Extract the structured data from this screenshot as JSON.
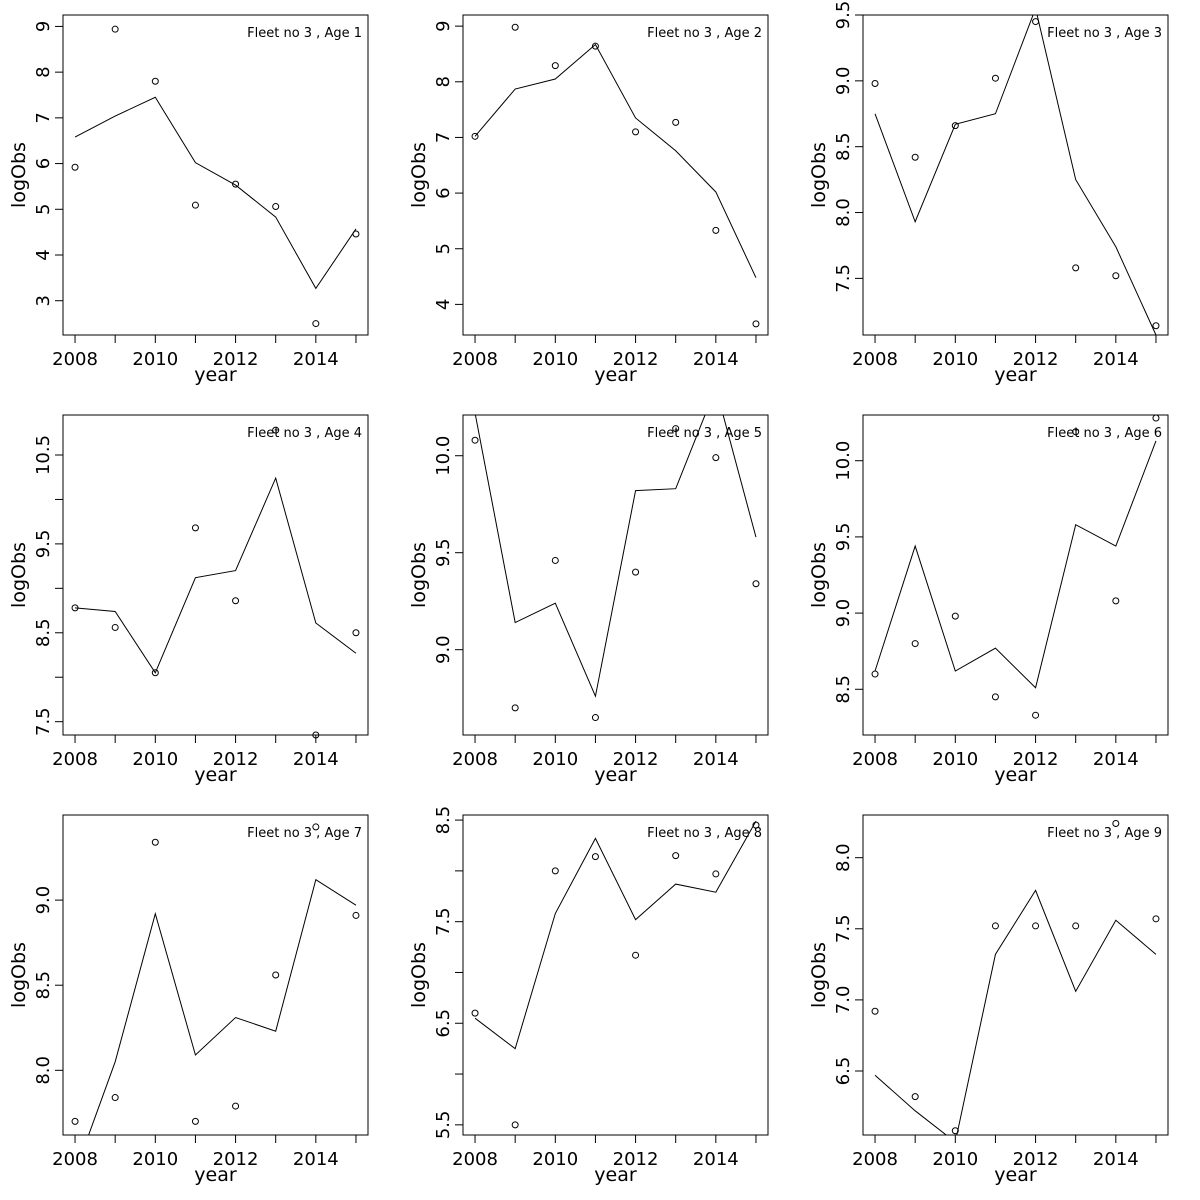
{
  "chart_data": [
    {
      "type": "line",
      "title": "Fleet no 3 , Age 1",
      "xlabel": "year",
      "ylabel": "logObs",
      "x": [
        2008,
        2009,
        2010,
        2011,
        2012,
        2013,
        2014,
        2015
      ],
      "xlim": [
        2007.7,
        2015.3
      ],
      "ylim": [
        2.25,
        9.25
      ],
      "xticks": [
        2008,
        2010,
        2012,
        2014
      ],
      "xtick_labels": [
        "2008",
        "2010",
        "2012",
        "2014"
      ],
      "yticks": [
        3,
        4,
        5,
        6,
        7,
        8,
        9
      ],
      "ytick_labels": [
        "3",
        "4",
        "5",
        "6",
        "7",
        "8",
        "9"
      ],
      "series": [
        {
          "style": "points",
          "values": [
            5.92,
            8.94,
            7.8,
            5.09,
            5.55,
            5.06,
            2.5,
            4.46
          ]
        },
        {
          "style": "line",
          "values": [
            6.58,
            7.04,
            7.45,
            6.02,
            5.53,
            4.83,
            3.27,
            4.57
          ]
        }
      ]
    },
    {
      "type": "line",
      "title": "Fleet no 3 , Age 2",
      "xlabel": "year",
      "ylabel": "logObs",
      "x": [
        2008,
        2009,
        2010,
        2011,
        2012,
        2013,
        2014,
        2015
      ],
      "xlim": [
        2007.7,
        2015.3
      ],
      "ylim": [
        3.45,
        9.2
      ],
      "xticks": [
        2008,
        2010,
        2012,
        2014
      ],
      "xtick_labels": [
        "2008",
        "2010",
        "2012",
        "2014"
      ],
      "yticks": [
        4,
        5,
        6,
        7,
        8,
        9
      ],
      "ytick_labels": [
        "4",
        "5",
        "6",
        "7",
        "8",
        "9"
      ],
      "series": [
        {
          "style": "points",
          "values": [
            7.02,
            8.98,
            8.29,
            8.64,
            7.1,
            7.27,
            5.33,
            3.65
          ]
        },
        {
          "style": "line",
          "values": [
            7.02,
            7.87,
            8.05,
            8.67,
            7.35,
            6.76,
            6.02,
            4.48
          ]
        }
      ]
    },
    {
      "type": "line",
      "title": "Fleet no 3 , Age 3",
      "xlabel": "year",
      "ylabel": "logObs",
      "x": [
        2008,
        2009,
        2010,
        2011,
        2012,
        2013,
        2014,
        2015
      ],
      "xlim": [
        2007.7,
        2015.3
      ],
      "ylim": [
        7.07,
        9.5
      ],
      "xticks": [
        2008,
        2010,
        2012,
        2014
      ],
      "xtick_labels": [
        "2008",
        "2010",
        "2012",
        "2014"
      ],
      "yticks": [
        7.5,
        8.0,
        8.5,
        9.0,
        9.5
      ],
      "ytick_labels": [
        "7.5",
        "8.0",
        "8.5",
        "9.0",
        "9.5"
      ],
      "series": [
        {
          "style": "points",
          "values": [
            8.98,
            8.42,
            8.66,
            9.02,
            9.45,
            7.58,
            7.52,
            7.14
          ]
        },
        {
          "style": "line",
          "values": [
            8.75,
            7.93,
            8.67,
            8.75,
            9.55,
            8.25,
            7.74,
            7.07
          ]
        }
      ]
    },
    {
      "type": "line",
      "title": "Fleet no 3 , Age 4",
      "xlabel": "year",
      "ylabel": "logObs",
      "x": [
        2008,
        2009,
        2010,
        2011,
        2012,
        2013,
        2014,
        2015
      ],
      "xlim": [
        2007.7,
        2015.3
      ],
      "ylim": [
        7.35,
        10.95
      ],
      "xticks": [
        2008,
        2010,
        2012,
        2014
      ],
      "xtick_labels": [
        "2008",
        "2010",
        "2012",
        "2014"
      ],
      "yticks": [
        7.5,
        8.0,
        8.5,
        9.0,
        9.5,
        10.0,
        10.5
      ],
      "ytick_labels": [
        "7.5",
        "",
        "8.5",
        "",
        "9.5",
        "",
        "10.5"
      ],
      "series": [
        {
          "style": "points",
          "values": [
            8.78,
            8.56,
            8.05,
            9.68,
            8.86,
            10.78,
            7.35,
            8.5
          ]
        },
        {
          "style": "line",
          "values": [
            8.78,
            8.74,
            8.05,
            9.12,
            9.2,
            10.24,
            8.61,
            8.27
          ]
        }
      ]
    },
    {
      "type": "line",
      "title": "Fleet no 3 , Age 5",
      "xlabel": "year",
      "ylabel": "logObs",
      "x": [
        2008,
        2009,
        2010,
        2011,
        2012,
        2013,
        2014,
        2015
      ],
      "xlim": [
        2007.7,
        2015.3
      ],
      "ylim": [
        8.56,
        10.21
      ],
      "xticks": [
        2008,
        2010,
        2012,
        2014
      ],
      "xtick_labels": [
        "2008",
        "2010",
        "2012",
        "2014"
      ],
      "yticks": [
        9.0,
        9.5,
        10.0
      ],
      "ytick_labels": [
        "9.0",
        "9.5",
        "10.0"
      ],
      "series": [
        {
          "style": "points",
          "values": [
            10.08,
            8.7,
            9.46,
            8.65,
            9.4,
            10.14,
            9.99,
            9.34
          ]
        },
        {
          "style": "line",
          "values": [
            10.22,
            9.14,
            9.24,
            8.76,
            9.82,
            9.83,
            10.35,
            9.58
          ]
        }
      ]
    },
    {
      "type": "line",
      "title": "Fleet no 3 , Age 6",
      "xlabel": "year",
      "ylabel": "logObs",
      "x": [
        2008,
        2009,
        2010,
        2011,
        2012,
        2013,
        2014,
        2015
      ],
      "xlim": [
        2007.7,
        2015.3
      ],
      "ylim": [
        8.2,
        10.3
      ],
      "xticks": [
        2008,
        2010,
        2012,
        2014
      ],
      "xtick_labels": [
        "2008",
        "2010",
        "2012",
        "2014"
      ],
      "yticks": [
        8.5,
        9.0,
        9.5,
        10.0
      ],
      "ytick_labels": [
        "8.5",
        "9.0",
        "9.5",
        "10.0"
      ],
      "series": [
        {
          "style": "points",
          "values": [
            8.6,
            8.8,
            8.98,
            8.45,
            8.33,
            10.19,
            9.08,
            10.28
          ]
        },
        {
          "style": "line",
          "values": [
            8.62,
            9.44,
            8.62,
            8.77,
            8.51,
            9.58,
            9.44,
            10.13
          ]
        }
      ]
    },
    {
      "type": "line",
      "title": "Fleet no 3 , Age 7",
      "xlabel": "year",
      "ylabel": "logObs",
      "x": [
        2008,
        2009,
        2010,
        2011,
        2012,
        2013,
        2014,
        2015
      ],
      "xlim": [
        2007.7,
        2015.3
      ],
      "ylim": [
        7.62,
        9.5
      ],
      "xticks": [
        2008,
        2010,
        2012,
        2014
      ],
      "xtick_labels": [
        "2008",
        "2010",
        "2012",
        "2014"
      ],
      "yticks": [
        8.0,
        8.5,
        9.0
      ],
      "ytick_labels": [
        "8.0",
        "8.5",
        "9.0"
      ],
      "series": [
        {
          "style": "points",
          "values": [
            7.7,
            7.84,
            9.34,
            7.7,
            7.79,
            8.56,
            9.43,
            8.91
          ]
        },
        {
          "style": "line",
          "values": [
            7.4,
            8.05,
            8.92,
            8.09,
            8.31,
            8.23,
            9.12,
            8.97
          ]
        }
      ]
    },
    {
      "type": "line",
      "title": "Fleet no 3 , Age 8",
      "xlabel": "year",
      "ylabel": "logObs",
      "x": [
        2008,
        2009,
        2010,
        2011,
        2012,
        2013,
        2014,
        2015
      ],
      "xlim": [
        2007.7,
        2015.3
      ],
      "ylim": [
        5.4,
        8.55
      ],
      "xticks": [
        2008,
        2010,
        2012,
        2014
      ],
      "xtick_labels": [
        "2008",
        "2010",
        "2012",
        "2014"
      ],
      "yticks": [
        5.5,
        6.0,
        6.5,
        7.0,
        7.5,
        8.0,
        8.5
      ],
      "ytick_labels": [
        "5.5",
        "",
        "6.5",
        "",
        "7.5",
        "",
        "8.5"
      ],
      "series": [
        {
          "style": "points",
          "values": [
            6.6,
            5.5,
            8.0,
            8.14,
            7.17,
            8.15,
            7.97,
            8.45
          ]
        },
        {
          "style": "line",
          "values": [
            6.55,
            6.25,
            7.58,
            8.32,
            7.52,
            7.87,
            7.79,
            8.49
          ]
        }
      ]
    },
    {
      "type": "line",
      "title": "Fleet no 3 , Age 9",
      "xlabel": "year",
      "ylabel": "logObs",
      "x": [
        2008,
        2009,
        2010,
        2011,
        2012,
        2013,
        2014,
        2015
      ],
      "xlim": [
        2007.7,
        2015.3
      ],
      "ylim": [
        6.05,
        8.3
      ],
      "xticks": [
        2008,
        2010,
        2012,
        2014
      ],
      "xtick_labels": [
        "2008",
        "2010",
        "2012",
        "2014"
      ],
      "yticks": [
        6.5,
        7.0,
        7.5,
        8.0
      ],
      "ytick_labels": [
        "6.5",
        "7.0",
        "7.5",
        "8.0"
      ],
      "series": [
        {
          "style": "points",
          "values": [
            6.92,
            6.32,
            6.08,
            7.52,
            7.52,
            7.52,
            8.24,
            7.57
          ]
        },
        {
          "style": "line",
          "values": [
            6.47,
            6.22,
            6.0,
            7.32,
            7.77,
            7.06,
            7.56,
            7.32
          ]
        }
      ]
    }
  ]
}
